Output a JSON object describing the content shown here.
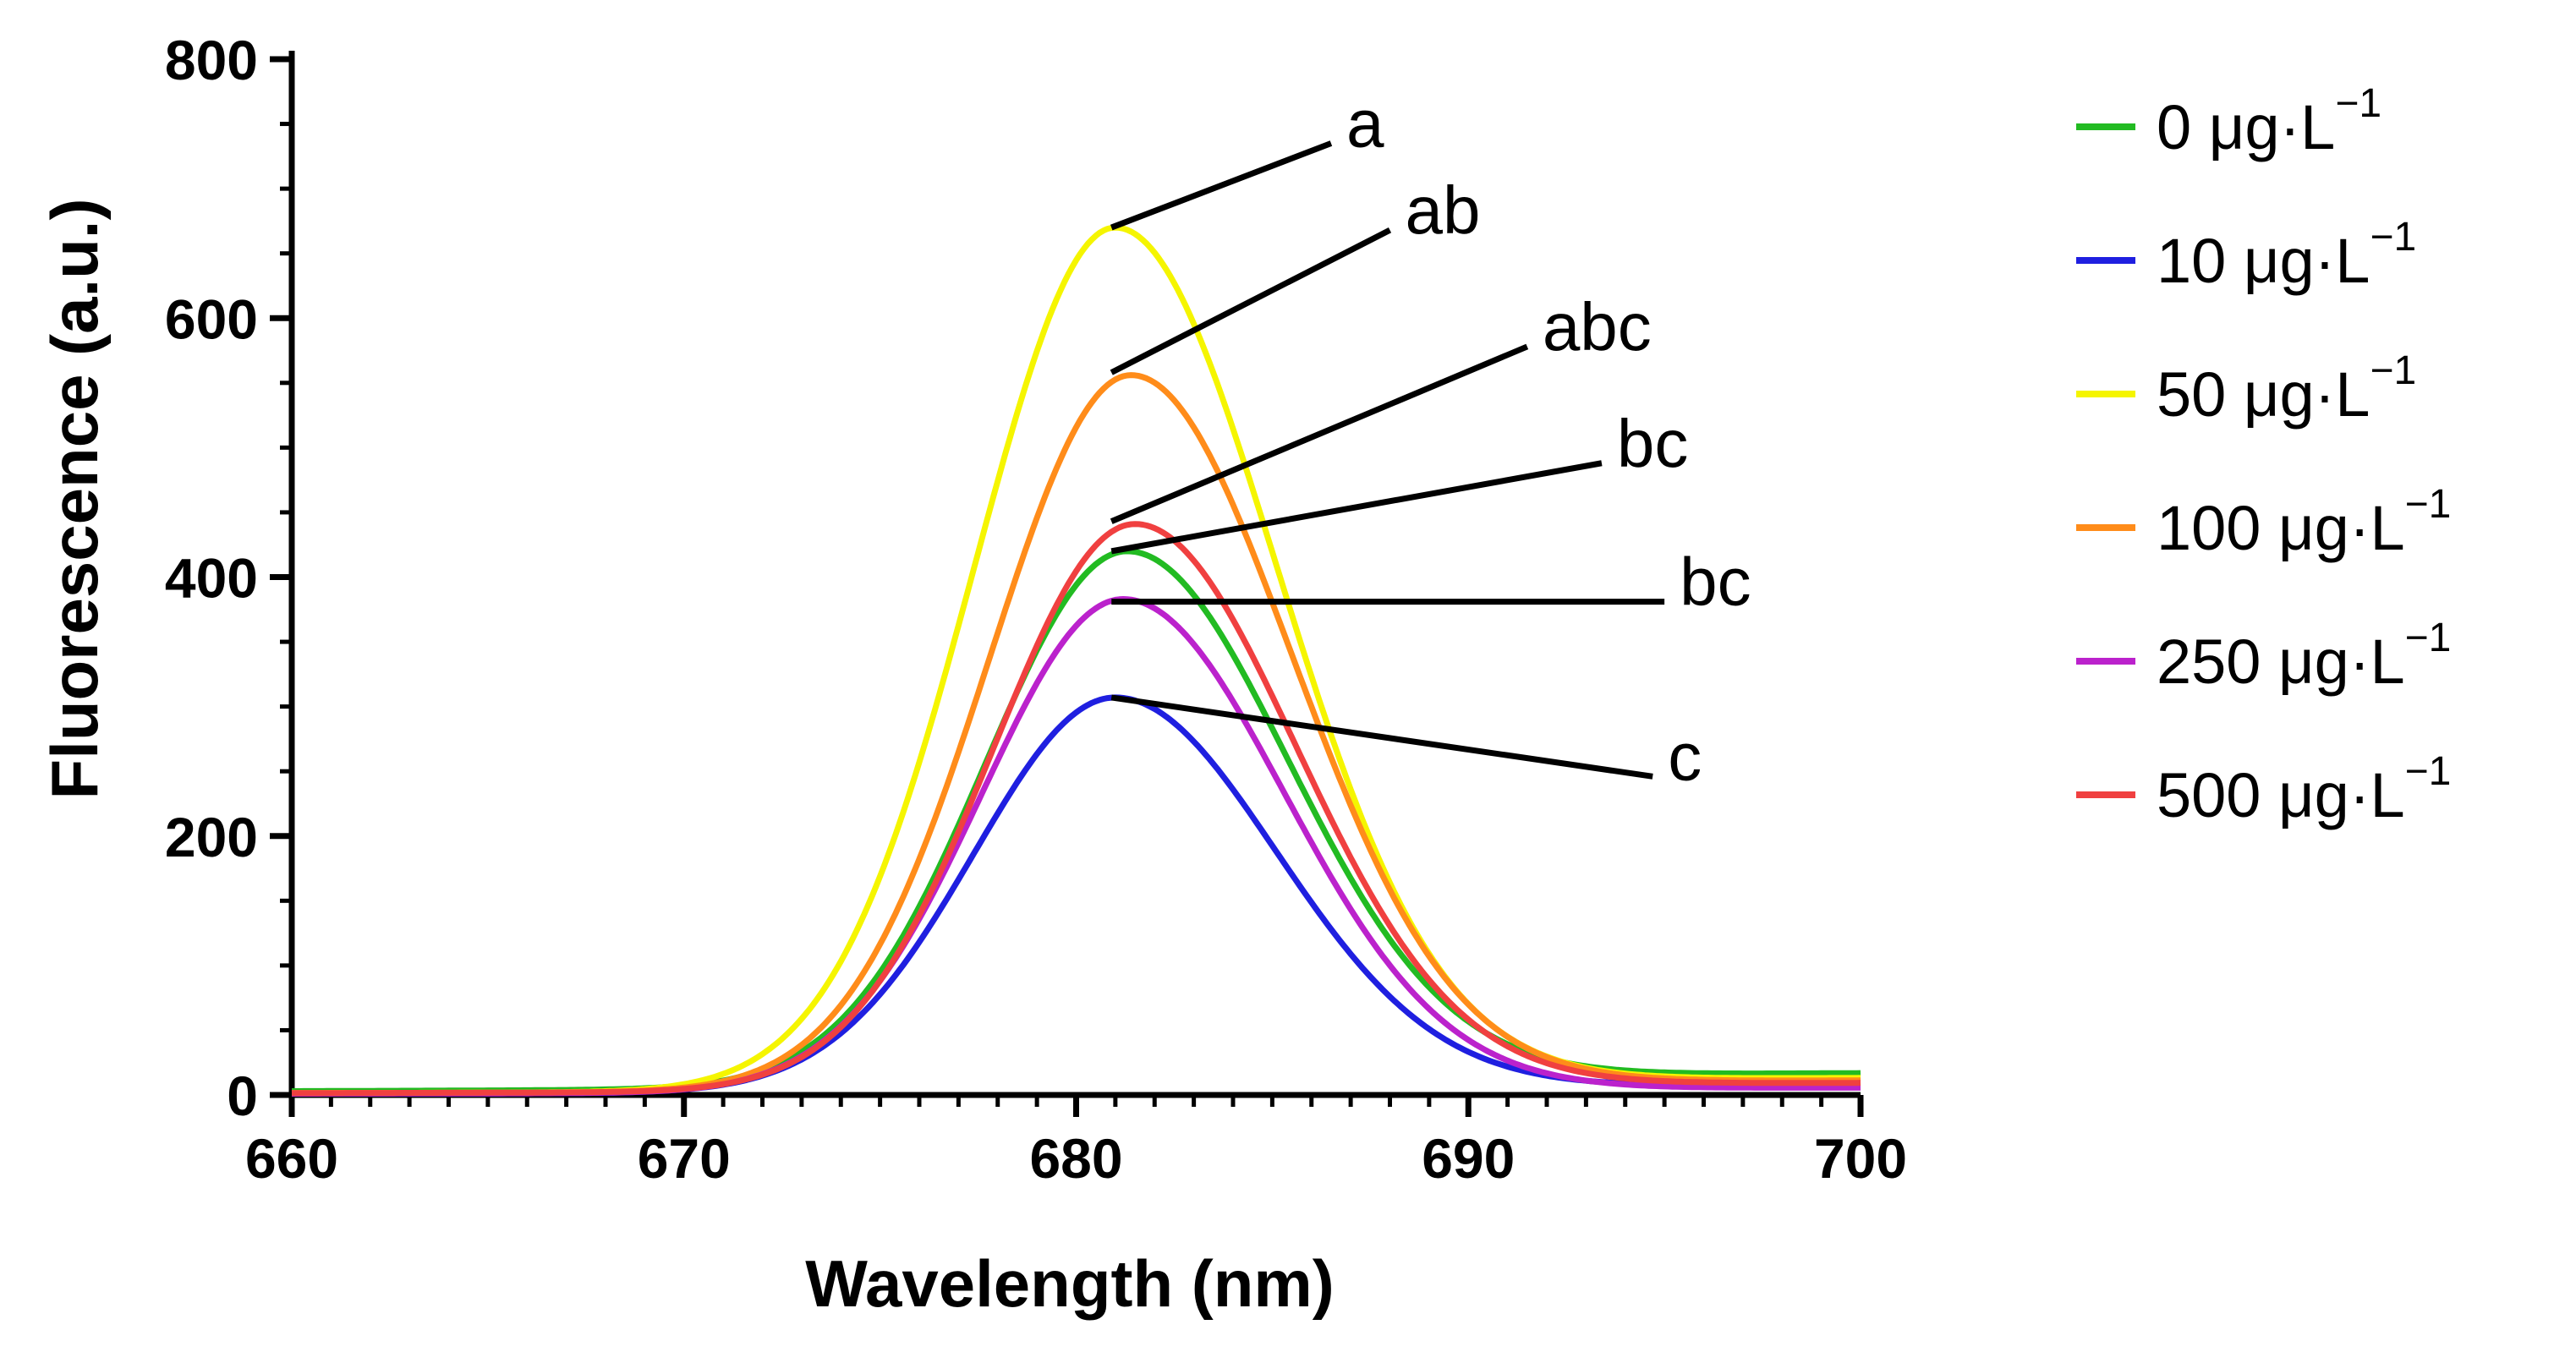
{
  "chart_data": {
    "type": "line",
    "title": "",
    "xlabel": "Wavelength (nm)",
    "ylabel": "Fluorescence (a.u.)",
    "xlim": [
      660,
      700
    ],
    "ylim": [
      0,
      800
    ],
    "x_ticks": [
      660,
      670,
      680,
      690,
      700
    ],
    "x_tick_labels": [
      "660",
      "670",
      "680",
      "690",
      "700"
    ],
    "y_ticks": [
      0,
      200,
      400,
      600,
      800
    ],
    "y_tick_labels": [
      "0",
      "200",
      "400",
      "600",
      "800"
    ],
    "grid": false,
    "legend_position": "right",
    "series": [
      {
        "name": "0 μg·L⁻¹",
        "unit_base": "0 μg·L",
        "unit_sup": "−1",
        "color": "#22bb22",
        "peak_x": 681.3,
        "peak_y": 420,
        "tail_left": 6,
        "tail_right": 18
      },
      {
        "name": "10 μg·L⁻¹",
        "unit_base": "10 μg·L",
        "unit_sup": "−1",
        "color": "#1f1fe0",
        "peak_x": 681.0,
        "peak_y": 307,
        "tail_left": 2,
        "tail_right": 8
      },
      {
        "name": "50 μg·L⁻¹",
        "unit_base": "50 μg·L",
        "unit_sup": "−1",
        "color": "#f5f500",
        "peak_x": 681.0,
        "peak_y": 670,
        "tail_left": 3,
        "tail_right": 14
      },
      {
        "name": "100 μg·L⁻¹",
        "unit_base": "100 μg·L",
        "unit_sup": "−1",
        "color": "#ff8c1a",
        "peak_x": 681.4,
        "peak_y": 556,
        "tail_left": 3,
        "tail_right": 12
      },
      {
        "name": "250 μg·L⁻¹",
        "unit_base": "250 μg·L",
        "unit_sup": "−1",
        "color": "#bb22cc",
        "peak_x": 681.2,
        "peak_y": 383,
        "tail_left": 2,
        "tail_right": 6
      },
      {
        "name": "500 μg·L⁻¹",
        "unit_base": "500 μg·L",
        "unit_sup": "−1",
        "color": "#f04040",
        "peak_x": 681.5,
        "peak_y": 441,
        "tail_left": 3,
        "tail_right": 10
      }
    ],
    "annotations": [
      {
        "text": "a",
        "x0": 680.9,
        "y0": 670,
        "x1": 686.5,
        "y1": 735
      },
      {
        "text": "ab",
        "x0": 680.9,
        "y0": 558,
        "x1": 688.0,
        "y1": 668
      },
      {
        "text": "abc",
        "x0": 680.9,
        "y0": 443,
        "x1": 691.5,
        "y1": 578
      },
      {
        "text": "bc",
        "x0": 680.9,
        "y0": 420,
        "x1": 693.4,
        "y1": 488
      },
      {
        "text": "bc",
        "x0": 680.9,
        "y0": 381,
        "x1": 695.0,
        "y1": 381
      },
      {
        "text": "c",
        "x0": 680.9,
        "y0": 307,
        "x1": 694.7,
        "y1": 246
      }
    ]
  }
}
